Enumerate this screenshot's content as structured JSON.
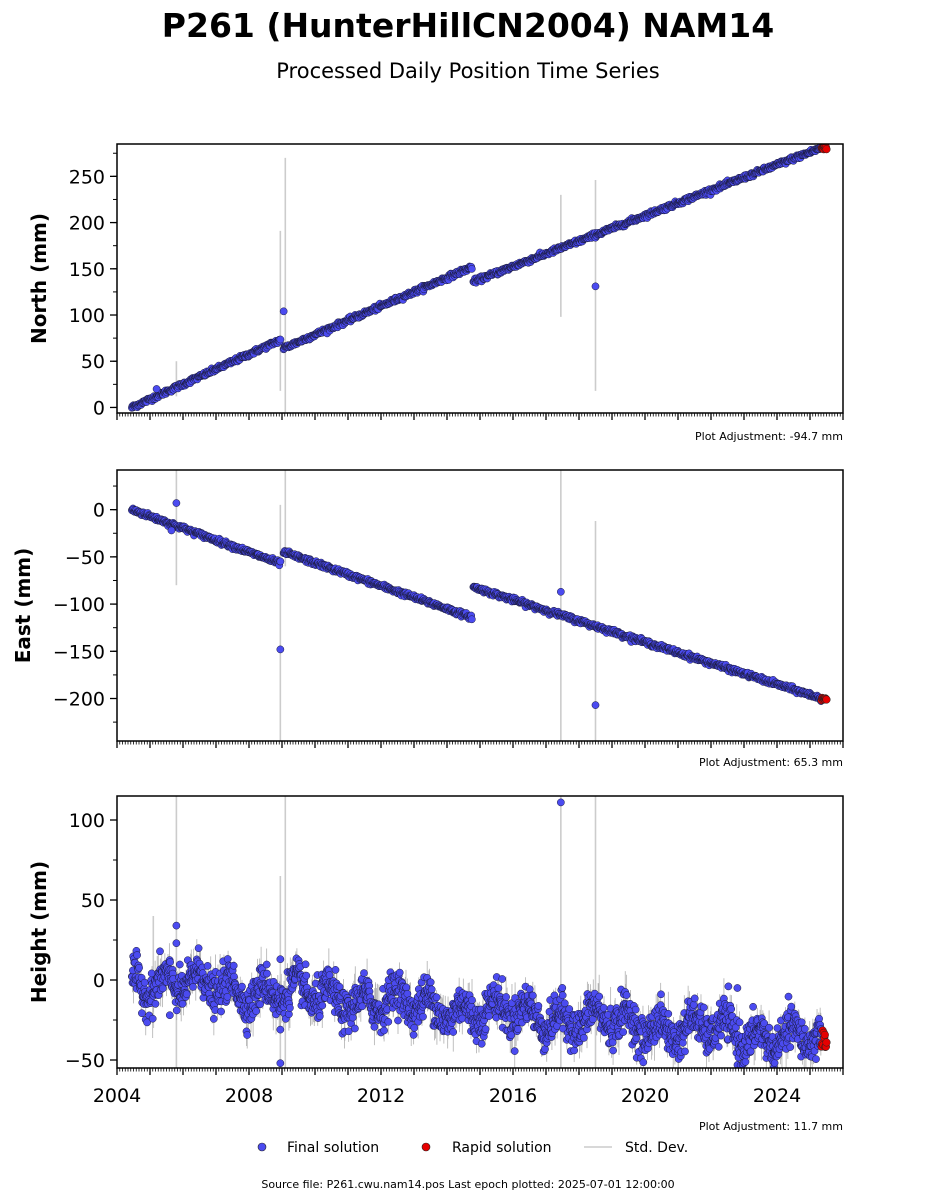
{
  "header": {
    "title": "P261 (HunterHillCN2004) NAM14",
    "subtitle": "Processed Daily Position Time Series"
  },
  "colors": {
    "final": "#4b4bf0",
    "rapid": "#e60000",
    "stddev": "#cccccc",
    "axes": "#000000"
  },
  "legend": {
    "final_label": "Final solution",
    "rapid_label": "Rapid solution",
    "std_label": "Std. Dev."
  },
  "footer": {
    "source": "Source file: P261.cwu.nam14.pos  Last epoch plotted: 2025-07-01 12:00:00"
  },
  "chart_data": [
    {
      "type": "scatter",
      "ylabel": "North (mm)",
      "adjustment": "Plot Adjustment: -94.7 mm",
      "xlim": [
        2004.0,
        2026.0
      ],
      "ylim": [
        -6,
        285
      ],
      "yticks": [
        0,
        50,
        100,
        150,
        200,
        250
      ],
      "xticks": [
        2004,
        2008,
        2012,
        2016,
        2020,
        2024
      ],
      "show_xtick_labels": false,
      "segments": [
        {
          "x": [
            2004.45,
            2008.95
          ],
          "y": [
            0,
            73
          ]
        },
        {
          "x": [
            2009.05,
            2014.75
          ],
          "y": [
            64,
            152
          ]
        },
        {
          "x": [
            2014.8,
            2025.35
          ],
          "y": [
            136,
            281
          ]
        }
      ],
      "noise": 1.2,
      "outliers": [
        {
          "x": 2009.05,
          "y": 104
        },
        {
          "x": 2018.5,
          "y": 131
        },
        {
          "x": 2005.2,
          "y": 20
        }
      ],
      "stddev_bars": [
        {
          "x": 2005.8,
          "lo": 12,
          "hi": 50
        },
        {
          "x": 2008.95,
          "lo": 18,
          "hi": 191
        },
        {
          "x": 2009.1,
          "lo": -5,
          "hi": 270
        },
        {
          "x": 2017.45,
          "lo": 98,
          "hi": 230
        },
        {
          "x": 2018.5,
          "lo": 18,
          "hi": 246
        }
      ],
      "rapid": {
        "x_start": 2025.35,
        "x_end": 2025.5,
        "y": [
          279,
          283
        ]
      }
    },
    {
      "type": "scatter",
      "ylabel": "East (mm)",
      "adjustment": "Plot Adjustment: 65.3 mm",
      "xlim": [
        2004.0,
        2026.0
      ],
      "ylim": [
        -245,
        42
      ],
      "yticks": [
        0,
        -50,
        -100,
        -150,
        -200
      ],
      "xticks": [
        2004,
        2008,
        2012,
        2016,
        2020,
        2024
      ],
      "show_xtick_labels": false,
      "segments": [
        {
          "x": [
            2004.45,
            2008.95
          ],
          "y": [
            0,
            -57
          ]
        },
        {
          "x": [
            2009.05,
            2014.75
          ],
          "y": [
            -45,
            -114
          ]
        },
        {
          "x": [
            2014.8,
            2025.35
          ],
          "y": [
            -82,
            -200
          ]
        }
      ],
      "noise": 1.2,
      "outliers": [
        {
          "x": 2005.8,
          "y": 7
        },
        {
          "x": 2005.65,
          "y": -22
        },
        {
          "x": 2008.95,
          "y": -148
        },
        {
          "x": 2017.45,
          "y": -87
        },
        {
          "x": 2018.5,
          "y": -207
        }
      ],
      "stddev_bars": [
        {
          "x": 2005.8,
          "lo": -80,
          "hi": 42
        },
        {
          "x": 2008.95,
          "lo": -245,
          "hi": 5
        },
        {
          "x": 2009.1,
          "lo": -60,
          "hi": 42
        },
        {
          "x": 2017.45,
          "lo": -245,
          "hi": 42
        },
        {
          "x": 2018.5,
          "lo": -245,
          "hi": -12
        }
      ],
      "rapid": {
        "x_start": 2025.35,
        "x_end": 2025.5,
        "y": [
          -199,
          -202
        ]
      }
    },
    {
      "type": "scatter",
      "ylabel": "Height (mm)",
      "adjustment": "Plot Adjustment: 11.7 mm",
      "xlim": [
        2004.0,
        2026.0
      ],
      "ylim": [
        -55,
        115
      ],
      "yticks": [
        -50,
        0,
        50,
        100
      ],
      "xticks": [
        2004,
        2008,
        2012,
        2016,
        2020,
        2024
      ],
      "xtick_labels": [
        "2004",
        "2008",
        "2012",
        "2016",
        "2020",
        "2024"
      ],
      "show_xtick_labels": true,
      "segments": [
        {
          "x": [
            2004.45,
            2025.35
          ],
          "y": [
            0,
            -38
          ]
        }
      ],
      "noise": 6,
      "seasonal_amp": 7,
      "outliers": [
        {
          "x": 2017.45,
          "y": 111
        },
        {
          "x": 2005.8,
          "y": 34
        },
        {
          "x": 2005.8,
          "y": 23
        },
        {
          "x": 2008.95,
          "y": -52
        },
        {
          "x": 2008.95,
          "y": -31
        },
        {
          "x": 2008.95,
          "y": 13
        },
        {
          "x": 2005.6,
          "y": -22
        },
        {
          "x": 2022.8,
          "y": -5
        }
      ],
      "stddev_bars": [
        {
          "x": 2005.8,
          "lo": -55,
          "hi": 115
        },
        {
          "x": 2008.95,
          "lo": -55,
          "hi": 65
        },
        {
          "x": 2009.1,
          "lo": -55,
          "hi": 115
        },
        {
          "x": 2017.45,
          "lo": -55,
          "hi": 115
        },
        {
          "x": 2018.5,
          "lo": -55,
          "hi": 115
        },
        {
          "x": 2005.1,
          "lo": -30,
          "hi": 40
        }
      ],
      "rapid": {
        "x_start": 2025.35,
        "x_end": 2025.5,
        "y": [
          -42,
          -30
        ]
      }
    }
  ]
}
